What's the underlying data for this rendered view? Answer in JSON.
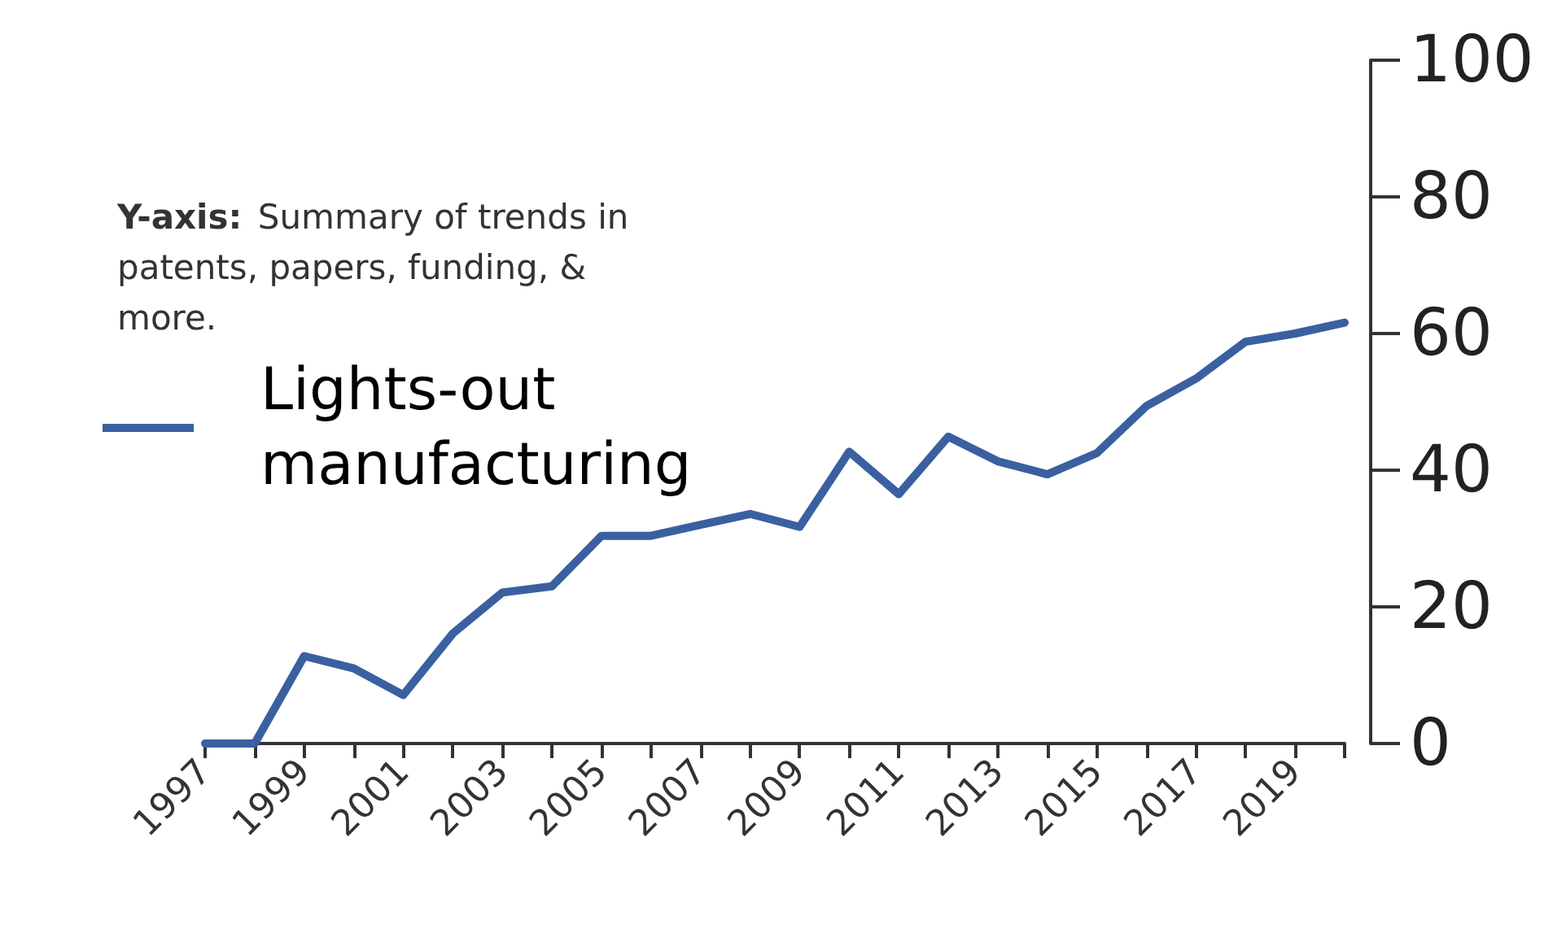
{
  "chart_data": {
    "type": "line",
    "categories": [
      "1997",
      null,
      "1999",
      null,
      "2001",
      null,
      "2003",
      null,
      "2005",
      null,
      "2007",
      null,
      "2009",
      null,
      "2011",
      null,
      "2013",
      null,
      "2015",
      null,
      "2017",
      null,
      "2019",
      null
    ],
    "series": [
      {
        "name": "Lights-out manufacturing",
        "color": "#3a60a0",
        "values": [
          0,
          0,
          12.8,
          11,
          7.1,
          16.1,
          22.1,
          23,
          30.4,
          30.4,
          32,
          33.6,
          31.7,
          42.7,
          36.5,
          44.9,
          41.3,
          39.4,
          42.5,
          49.4,
          53.4,
          58.8,
          60,
          61.6
        ]
      }
    ],
    "ylim": [
      0,
      100
    ],
    "yticks": [
      0,
      20,
      40,
      60,
      80,
      100
    ],
    "annotations": [
      "Y-axis: Summary of trends in patents, papers, funding, & more."
    ],
    "legend": "left",
    "grid": false,
    "marker": "none",
    "line_style": "solid"
  }
}
